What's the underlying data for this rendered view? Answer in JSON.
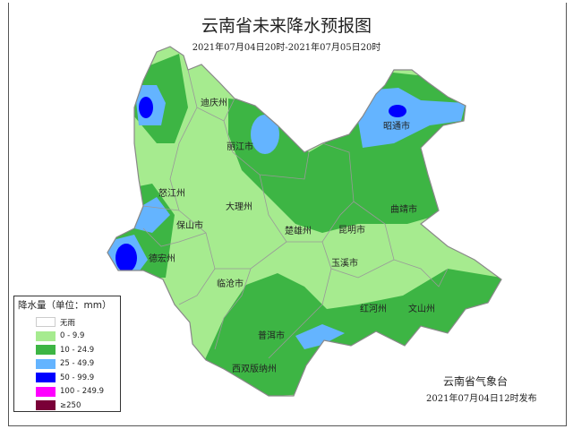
{
  "title": "云南省未来降水预报图",
  "subtitle": "2021年07月04日20时-2021年07月05日20时",
  "colors": {
    "none": "#ffffff",
    "light": "#a6eb8f",
    "moderate": "#3db544",
    "heavy": "#64b4ff",
    "rainstorm": "#0000ff",
    "heavy_rainstorm": "#ff00ff",
    "extreme": "#7a0038"
  },
  "cities": [
    {
      "name": "迪庆州"
    },
    {
      "name": "丽江市"
    },
    {
      "name": "昭通市"
    },
    {
      "name": "怒江州"
    },
    {
      "name": "大理州"
    },
    {
      "name": "保山市"
    },
    {
      "name": "楚雄州"
    },
    {
      "name": "昆明市"
    },
    {
      "name": "曲靖市"
    },
    {
      "name": "德宏州"
    },
    {
      "name": "玉溪市"
    },
    {
      "name": "临沧市"
    },
    {
      "name": "红河州"
    },
    {
      "name": "文山州"
    },
    {
      "name": "普洱市"
    },
    {
      "name": "西双版纳州"
    }
  ],
  "legend": {
    "title": "降水量（单位：mm）",
    "items": [
      {
        "label": "无雨",
        "color": "#ffffff"
      },
      {
        "label": "0 - 9.9",
        "color": "#a6eb8f"
      },
      {
        "label": "10 - 24.9",
        "color": "#3db544"
      },
      {
        "label": "25 - 49.9",
        "color": "#64b4ff"
      },
      {
        "label": "50 - 99.9",
        "color": "#0000ff"
      },
      {
        "label": "100 - 249.9",
        "color": "#ff00ff"
      },
      {
        "label": "≥250",
        "color": "#7a0038"
      }
    ]
  },
  "issuer": "云南省气象台",
  "issued": "2021年07月04日12时发布"
}
